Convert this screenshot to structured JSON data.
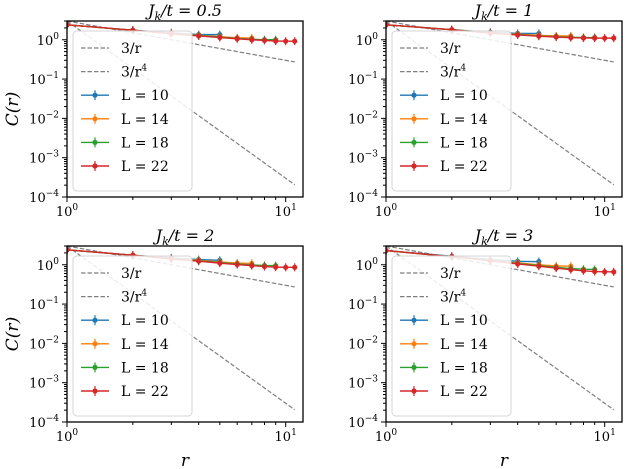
{
  "chart_data": [
    {
      "type": "line",
      "title": "J_k/t = 0.5",
      "title_parts": {
        "base": "J",
        "sub": "k",
        "rest": "/t = 0.5"
      },
      "xlabel": "",
      "ylabel": "C(r)",
      "xscale": "log",
      "yscale": "log",
      "xlim": [
        1,
        12
      ],
      "ylim": [
        0.0001,
        3
      ],
      "xticks": [
        "10^0",
        "10^1"
      ],
      "yticks": [
        "10^-4",
        "10^-3",
        "10^-2",
        "10^-1",
        "10^0"
      ],
      "legend_position": "upper-left",
      "reference_lines": [
        {
          "name": "3/r",
          "label": "3/r",
          "exponent": -1,
          "amplitude": 3,
          "color": "#7f7f7f",
          "dash": true
        },
        {
          "name": "3/r^4",
          "label": "3/r",
          "label_sup": "4",
          "exponent": -4,
          "amplitude": 3,
          "color": "#7f7f7f",
          "dash": true
        }
      ],
      "series": [
        {
          "name": "L=10",
          "label": "L = 10",
          "color": "#1f77b4",
          "x": [
            1,
            2,
            3,
            4,
            5
          ],
          "y": [
            2.4,
            1.75,
            1.5,
            1.35,
            1.35
          ]
        },
        {
          "name": "L=14",
          "label": "L = 14",
          "color": "#ff7f0e",
          "x": [
            1,
            2,
            3,
            4,
            5,
            6,
            7
          ],
          "y": [
            2.4,
            1.75,
            1.45,
            1.3,
            1.2,
            1.12,
            1.1
          ]
        },
        {
          "name": "L=18",
          "label": "L = 18",
          "color": "#2ca02c",
          "x": [
            1,
            2,
            3,
            4,
            5,
            6,
            7,
            8,
            9
          ],
          "y": [
            2.4,
            1.75,
            1.43,
            1.28,
            1.17,
            1.08,
            1.03,
            1.0,
            1.0
          ]
        },
        {
          "name": "L=22",
          "label": "L = 22",
          "color": "#d62728",
          "x": [
            1,
            2,
            3,
            4,
            5,
            6,
            7,
            8,
            9,
            10,
            11
          ],
          "y": [
            2.4,
            1.75,
            1.42,
            1.25,
            1.14,
            1.06,
            1.0,
            0.96,
            0.93,
            0.92,
            0.92
          ]
        }
      ]
    },
    {
      "type": "line",
      "title": "J_k/t = 1",
      "title_parts": {
        "base": "J",
        "sub": "k",
        "rest": "/t = 1"
      },
      "xlabel": "",
      "ylabel": "",
      "xscale": "log",
      "yscale": "log",
      "xlim": [
        1,
        12
      ],
      "ylim": [
        0.0001,
        3
      ],
      "xticks": [
        "10^0",
        "10^1"
      ],
      "yticks": [
        "10^-4",
        "10^-3",
        "10^-2",
        "10^-1",
        "10^0"
      ],
      "legend_position": "upper-left",
      "reference_lines": [
        {
          "name": "3/r",
          "label": "3/r",
          "exponent": -1,
          "amplitude": 3,
          "color": "#7f7f7f",
          "dash": true
        },
        {
          "name": "3/r^4",
          "label": "3/r",
          "label_sup": "4",
          "exponent": -4,
          "amplitude": 3,
          "color": "#7f7f7f",
          "dash": true
        }
      ],
      "series": [
        {
          "name": "L=10",
          "label": "L = 10",
          "color": "#1f77b4",
          "x": [
            1,
            2,
            3,
            4,
            5
          ],
          "y": [
            2.4,
            1.8,
            1.55,
            1.45,
            1.45
          ]
        },
        {
          "name": "L=14",
          "label": "L = 14",
          "color": "#ff7f0e",
          "x": [
            1,
            2,
            3,
            4,
            5,
            6,
            7
          ],
          "y": [
            2.4,
            1.8,
            1.5,
            1.38,
            1.3,
            1.25,
            1.25
          ]
        },
        {
          "name": "L=18",
          "label": "L = 18",
          "color": "#2ca02c",
          "x": [
            1,
            2,
            3,
            4,
            5,
            6,
            7,
            8,
            9
          ],
          "y": [
            2.4,
            1.8,
            1.48,
            1.35,
            1.25,
            1.2,
            1.16,
            1.14,
            1.14
          ]
        },
        {
          "name": "L=22",
          "label": "L = 22",
          "color": "#d62728",
          "x": [
            1,
            2,
            3,
            4,
            5,
            6,
            7,
            8,
            9,
            10,
            11
          ],
          "y": [
            2.4,
            1.8,
            1.47,
            1.33,
            1.23,
            1.17,
            1.13,
            1.11,
            1.1,
            1.1,
            1.1
          ]
        }
      ]
    },
    {
      "type": "line",
      "title": "J_k/t = 2",
      "title_parts": {
        "base": "J",
        "sub": "k",
        "rest": "/t = 2"
      },
      "xlabel": "r",
      "ylabel": "C(r)",
      "xscale": "log",
      "yscale": "log",
      "xlim": [
        1,
        12
      ],
      "ylim": [
        0.0001,
        3
      ],
      "xticks": [
        "10^0",
        "10^1"
      ],
      "yticks": [
        "10^-4",
        "10^-3",
        "10^-2",
        "10^-1",
        "10^0"
      ],
      "legend_position": "upper-left",
      "reference_lines": [
        {
          "name": "3/r",
          "label": "3/r",
          "exponent": -1,
          "amplitude": 3,
          "color": "#7f7f7f",
          "dash": true
        },
        {
          "name": "3/r^4",
          "label": "3/r",
          "label_sup": "4",
          "exponent": -4,
          "amplitude": 3,
          "color": "#7f7f7f",
          "dash": true
        }
      ],
      "series": [
        {
          "name": "L=10",
          "label": "L = 10",
          "color": "#1f77b4",
          "x": [
            1,
            2,
            3,
            4,
            5
          ],
          "y": [
            2.4,
            1.75,
            1.5,
            1.35,
            1.3
          ]
        },
        {
          "name": "L=14",
          "label": "L = 14",
          "color": "#ff7f0e",
          "x": [
            1,
            2,
            3,
            4,
            5,
            6,
            7
          ],
          "y": [
            2.4,
            1.75,
            1.45,
            1.3,
            1.18,
            1.1,
            1.08
          ]
        },
        {
          "name": "L=18",
          "label": "L = 18",
          "color": "#2ca02c",
          "x": [
            1,
            2,
            3,
            4,
            5,
            6,
            7,
            8,
            9
          ],
          "y": [
            2.4,
            1.75,
            1.42,
            1.26,
            1.14,
            1.05,
            0.99,
            0.96,
            0.95
          ]
        },
        {
          "name": "L=22",
          "label": "L = 22",
          "color": "#d62728",
          "x": [
            1,
            2,
            3,
            4,
            5,
            6,
            7,
            8,
            9,
            10,
            11
          ],
          "y": [
            2.4,
            1.75,
            1.4,
            1.23,
            1.1,
            1.01,
            0.95,
            0.9,
            0.87,
            0.86,
            0.86
          ]
        }
      ]
    },
    {
      "type": "line",
      "title": "J_k/t = 3",
      "title_parts": {
        "base": "J",
        "sub": "k",
        "rest": "/t = 3"
      },
      "xlabel": "r",
      "ylabel": "",
      "xscale": "log",
      "yscale": "log",
      "xlim": [
        1,
        12
      ],
      "ylim": [
        0.0001,
        3
      ],
      "xticks": [
        "10^0",
        "10^1"
      ],
      "yticks": [
        "10^-4",
        "10^-3",
        "10^-2",
        "10^-1",
        "10^0"
      ],
      "legend_position": "upper-left",
      "reference_lines": [
        {
          "name": "3/r",
          "label": "3/r",
          "exponent": -1,
          "amplitude": 3,
          "color": "#7f7f7f",
          "dash": true
        },
        {
          "name": "3/r^4",
          "label": "3/r",
          "label_sup": "4",
          "exponent": -4,
          "amplitude": 3,
          "color": "#7f7f7f",
          "dash": true
        }
      ],
      "series": [
        {
          "name": "L=10",
          "label": "L = 10",
          "color": "#1f77b4",
          "x": [
            1,
            2,
            3,
            4,
            5
          ],
          "y": [
            2.3,
            1.65,
            1.35,
            1.22,
            1.2
          ]
        },
        {
          "name": "L=14",
          "label": "L = 14",
          "color": "#ff7f0e",
          "x": [
            1,
            2,
            3,
            4,
            5,
            6,
            7
          ],
          "y": [
            2.3,
            1.6,
            1.3,
            1.12,
            1.0,
            0.93,
            0.92
          ]
        },
        {
          "name": "L=18",
          "label": "L = 18",
          "color": "#2ca02c",
          "x": [
            1,
            2,
            3,
            4,
            5,
            6,
            7,
            8,
            9
          ],
          "y": [
            2.3,
            1.6,
            1.28,
            1.08,
            0.95,
            0.86,
            0.8,
            0.77,
            0.76
          ]
        },
        {
          "name": "L=22",
          "label": "L = 22",
          "color": "#d62728",
          "x": [
            1,
            2,
            3,
            4,
            5,
            6,
            7,
            8,
            9,
            10,
            11
          ],
          "y": [
            2.3,
            1.6,
            1.26,
            1.05,
            0.92,
            0.82,
            0.75,
            0.7,
            0.67,
            0.66,
            0.66
          ]
        }
      ]
    }
  ]
}
